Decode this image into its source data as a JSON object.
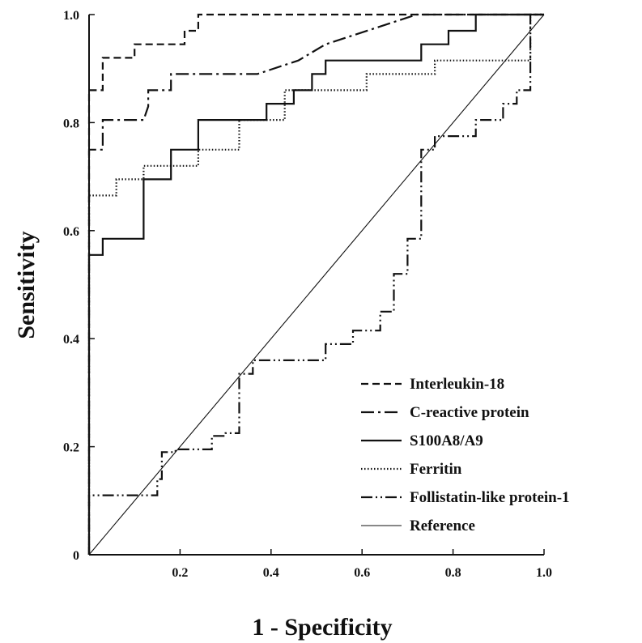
{
  "chart_data": {
    "type": "line",
    "title": "",
    "xlabel": "1 - Specificity",
    "ylabel": "Sensitivity",
    "xlim": [
      0,
      1
    ],
    "ylim": [
      0,
      1
    ],
    "grid": false,
    "legend_position": "bottom-right",
    "x_ticks": [
      {
        "value": 0,
        "label": ""
      },
      {
        "value": 0.2,
        "label": "0.2"
      },
      {
        "value": 0.4,
        "label": "0.4"
      },
      {
        "value": 0.6,
        "label": "0.6"
      },
      {
        "value": 0.8,
        "label": "0.8"
      },
      {
        "value": 1.0,
        "label": "1.0"
      }
    ],
    "y_ticks": [
      {
        "value": 0,
        "label": "0"
      },
      {
        "value": 0.2,
        "label": "0.2"
      },
      {
        "value": 0.4,
        "label": "0.4"
      },
      {
        "value": 0.6,
        "label": "0.6"
      },
      {
        "value": 0.8,
        "label": "0.8"
      },
      {
        "value": 1.0,
        "label": "1.0"
      }
    ],
    "series": [
      {
        "name": "Interleukin-18",
        "dash": "dash",
        "x": [
          0,
          0,
          0.03,
          0.03,
          0.1,
          0.1,
          0.21,
          0.21,
          0.24,
          0.24,
          1.0
        ],
        "y": [
          0,
          0.86,
          0.86,
          0.92,
          0.92,
          0.945,
          0.945,
          0.97,
          0.97,
          1.0,
          1.0
        ]
      },
      {
        "name": "C-reactive protein",
        "dash": "dashdot",
        "x": [
          0,
          0,
          0.03,
          0.03,
          0.12,
          0.13,
          0.13,
          0.18,
          0.18,
          0.37,
          0.46,
          0.52,
          0.72,
          1.0
        ],
        "y": [
          0,
          0.75,
          0.75,
          0.805,
          0.805,
          0.83,
          0.86,
          0.86,
          0.89,
          0.89,
          0.915,
          0.945,
          1.0,
          1.0
        ]
      },
      {
        "name": "S100A8/A9",
        "dash": "solid",
        "x": [
          0,
          0,
          0.03,
          0.03,
          0.12,
          0.12,
          0.18,
          0.18,
          0.24,
          0.24,
          0.39,
          0.39,
          0.45,
          0.45,
          0.49,
          0.49,
          0.52,
          0.52,
          0.73,
          0.73,
          0.79,
          0.79,
          0.85,
          0.85,
          1.0
        ],
        "y": [
          0,
          0.555,
          0.555,
          0.585,
          0.585,
          0.695,
          0.695,
          0.75,
          0.75,
          0.805,
          0.805,
          0.835,
          0.835,
          0.86,
          0.86,
          0.89,
          0.89,
          0.915,
          0.915,
          0.945,
          0.945,
          0.97,
          0.97,
          1.0,
          1.0
        ]
      },
      {
        "name": "Ferritin",
        "dash": "dot",
        "x": [
          0,
          0,
          0.06,
          0.06,
          0.12,
          0.12,
          0.24,
          0.24,
          0.33,
          0.33,
          0.43,
          0.43,
          0.61,
          0.61,
          0.76,
          0.76,
          0.97,
          0.97,
          1.0
        ],
        "y": [
          0,
          0.665,
          0.665,
          0.695,
          0.695,
          0.72,
          0.72,
          0.75,
          0.75,
          0.805,
          0.805,
          0.86,
          0.86,
          0.89,
          0.89,
          0.915,
          0.915,
          1.0,
          1.0
        ]
      },
      {
        "name": "Follistatin-like protein-1",
        "dash": "dashdotdot",
        "x": [
          0,
          0,
          0.15,
          0.15,
          0.16,
          0.16,
          0.19,
          0.19,
          0.27,
          0.27,
          0.3,
          0.3,
          0.33,
          0.33,
          0.36,
          0.36,
          0.52,
          0.52,
          0.58,
          0.58,
          0.64,
          0.64,
          0.67,
          0.67,
          0.7,
          0.7,
          0.73,
          0.73,
          0.76,
          0.76,
          0.85,
          0.85,
          0.91,
          0.91,
          0.94,
          0.94,
          0.97,
          0.97,
          1.0
        ],
        "y": [
          0,
          0.11,
          0.11,
          0.14,
          0.14,
          0.19,
          0.19,
          0.195,
          0.195,
          0.22,
          0.22,
          0.225,
          0.225,
          0.335,
          0.335,
          0.36,
          0.36,
          0.39,
          0.39,
          0.415,
          0.415,
          0.45,
          0.45,
          0.52,
          0.52,
          0.585,
          0.585,
          0.75,
          0.75,
          0.775,
          0.775,
          0.805,
          0.805,
          0.835,
          0.835,
          0.86,
          0.86,
          1.0,
          1.0
        ]
      },
      {
        "name": "Reference",
        "dash": "thin",
        "x": [
          0,
          1.0
        ],
        "y": [
          0,
          1.0
        ]
      }
    ]
  }
}
